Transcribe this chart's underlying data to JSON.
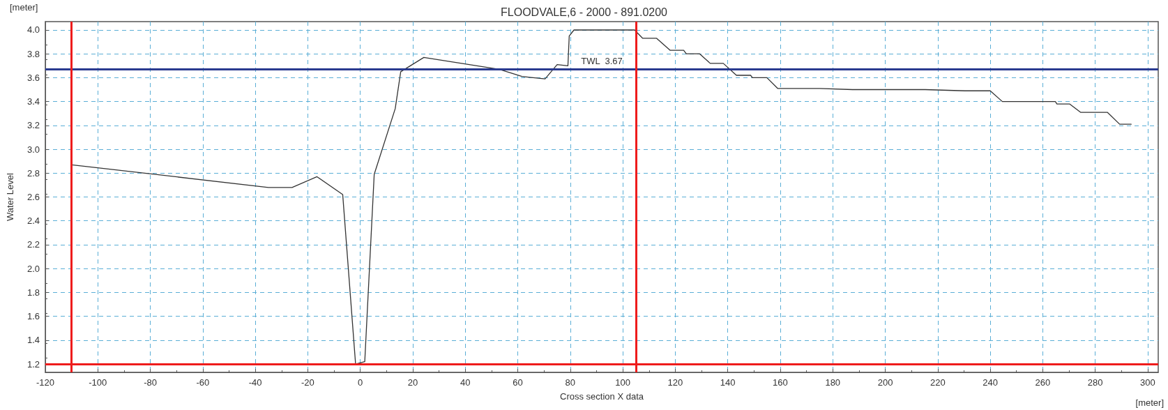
{
  "chart_data": {
    "type": "line",
    "title": "FLOODVALE,6 - 2000 - 891.0200",
    "xlabel": "Cross section X data",
    "ylabel": "Water Level",
    "annotations": [
      "[meter]",
      "[meter]"
    ],
    "x": [
      -110,
      -35,
      -26,
      -16.5,
      -6.7,
      -1.8,
      1.7,
      5.3,
      13.3,
      15.4,
      24.2,
      52.9,
      61.6,
      70.4,
      75,
      79.1,
      79.6,
      81.4,
      104.5,
      107.6,
      112.9,
      118,
      123.2,
      124.2,
      129.3,
      133.3,
      138.3,
      143.3,
      148.7,
      149.4,
      154.9,
      159,
      175,
      187.5,
      215.2,
      230.4,
      240,
      244.6,
      264.8,
      265.4,
      270.2,
      274.4,
      284.6,
      289.3,
      293.7
    ],
    "series": [
      {
        "color": "#333333",
        "values": [
          2.87,
          2.68,
          2.68,
          2.77,
          2.62,
          1.2,
          1.22,
          2.79,
          3.34,
          3.65,
          3.77,
          3.67,
          3.61,
          3.59,
          3.71,
          3.7,
          3.95,
          4.0,
          4.0,
          3.93,
          3.93,
          3.83,
          3.83,
          3.8,
          3.8,
          3.72,
          3.72,
          3.62,
          3.62,
          3.6,
          3.6,
          3.51,
          3.51,
          3.5,
          3.5,
          3.49,
          3.49,
          3.4,
          3.4,
          3.38,
          3.38,
          3.31,
          3.31,
          3.21,
          3.21
        ]
      }
    ],
    "xlim": [
      -120,
      304
    ],
    "xticks": [
      -120,
      -100,
      -80,
      -60,
      -40,
      -20,
      0,
      20,
      40,
      60,
      80,
      100,
      120,
      140,
      160,
      180,
      200,
      220,
      240,
      260,
      280,
      300
    ],
    "ylim": [
      1.13,
      4.07
    ],
    "yticks": [
      {
        "value": 1.2,
        "label": "1.2"
      },
      {
        "value": 1.4,
        "label": "1.4"
      },
      {
        "value": 1.6,
        "label": "1.6"
      },
      {
        "value": 1.8,
        "label": "1.8"
      },
      {
        "value": 2.0,
        "label": "2.0"
      },
      {
        "value": 2.2,
        "label": "2.2"
      },
      {
        "value": 2.4,
        "label": "2.4"
      },
      {
        "value": 2.6,
        "label": "2.6"
      },
      {
        "value": 2.8,
        "label": "2.8"
      },
      {
        "value": 3.0,
        "label": "3.0"
      },
      {
        "value": 3.2,
        "label": "3.2"
      },
      {
        "value": 3.4,
        "label": "3.4"
      },
      {
        "value": 3.6,
        "label": "3.6"
      },
      {
        "value": 3.8,
        "label": "3.8"
      },
      {
        "value": 4.0,
        "label": "4.0"
      }
    ],
    "ref_lines": [
      {
        "axis": "y",
        "value": 3.67,
        "label": "TWL  3.67",
        "color": "#2a3a8f"
      },
      {
        "axis": "x",
        "value": -110,
        "label": null,
        "color": "#ee1c1c"
      },
      {
        "axis": "x",
        "value": 105,
        "label": null,
        "color": "#ee1c1c"
      },
      {
        "axis": "y",
        "value": 1.2,
        "label": null,
        "color": "#ee1c1c"
      }
    ],
    "grid": true,
    "marker": "none",
    "line_style": "solid"
  }
}
